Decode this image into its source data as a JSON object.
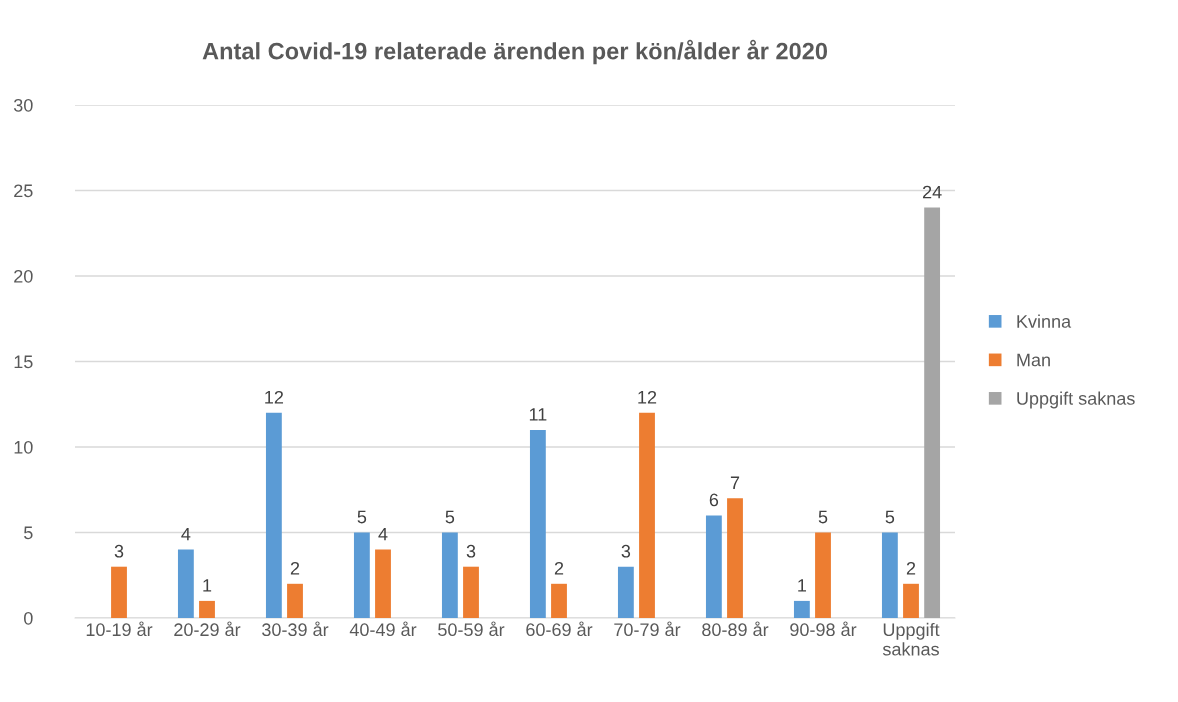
{
  "chart_data": {
    "type": "bar",
    "title": "Antal Covid-19 relaterade ärenden per kön/ålder år 2020",
    "categories": [
      "10-19 år",
      "20-29 år",
      "30-39 år",
      "40-49 år",
      "50-59 år",
      "60-69 år",
      "70-79 år",
      "80-89 år",
      "90-98 år",
      "Uppgift\nsaknas"
    ],
    "series": [
      {
        "name": "Kvinna",
        "color": "#5b9bd5",
        "values": [
          null,
          4,
          12,
          5,
          5,
          11,
          3,
          6,
          1,
          5
        ]
      },
      {
        "name": "Man",
        "color": "#ed7d31",
        "values": [
          3,
          1,
          2,
          4,
          3,
          2,
          12,
          7,
          5,
          2
        ]
      },
      {
        "name": "Uppgift saknas",
        "color": "#a5a5a5",
        "values": [
          null,
          null,
          null,
          null,
          null,
          null,
          null,
          null,
          null,
          24
        ]
      }
    ],
    "ylim": [
      0,
      30
    ],
    "yticks": [
      0,
      5,
      10,
      15,
      20,
      25,
      30
    ],
    "grid": "y",
    "legend": "right",
    "data_labels": true
  }
}
